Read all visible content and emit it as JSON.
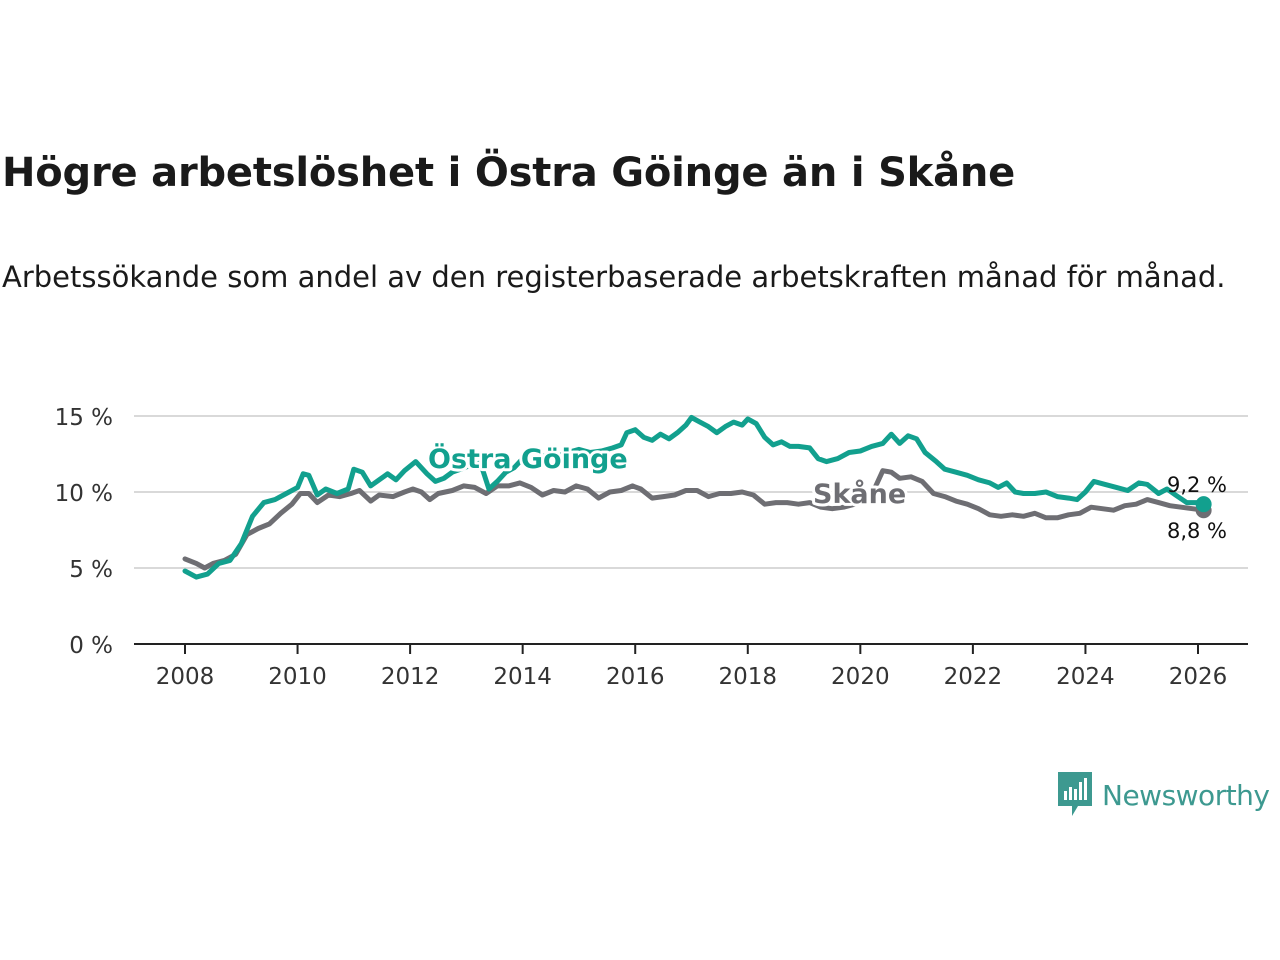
{
  "title": "Högre arbetslöshet i Östra Göinge än i Skåne",
  "subtitle": "Arbetssökande som andel av den registerbaserade arbetskraften månad för månad.",
  "brand": {
    "name": "Newsworthy",
    "color": "#3d9990",
    "icon": "bar-chart-speech-bubble-icon"
  },
  "chart_data": {
    "type": "line",
    "yaxis": {
      "min": 0,
      "max": 15,
      "ticks": [
        0,
        5,
        10,
        15
      ],
      "tick_labels": [
        "0 %",
        "5 %",
        "10 %",
        "15 %"
      ],
      "grid": true
    },
    "xaxis": {
      "min": 2007.6,
      "max": 2026.8,
      "ticks": [
        2008,
        2010,
        2012,
        2014,
        2016,
        2018,
        2020,
        2022,
        2024,
        2026
      ],
      "tick_labels": [
        "2008",
        "2010",
        "2012",
        "2014",
        "2016",
        "2018",
        "2020",
        "2022",
        "2024",
        "2026"
      ]
    },
    "series": [
      {
        "name": "Östra Göinge",
        "label": "Östra Göinge",
        "color": "#12a08e",
        "end_label": "9,2 %",
        "points": [
          [
            2008.0,
            4.8
          ],
          [
            2008.2,
            4.4
          ],
          [
            2008.4,
            4.6
          ],
          [
            2008.6,
            5.3
          ],
          [
            2008.8,
            5.5
          ],
          [
            2009.0,
            6.6
          ],
          [
            2009.2,
            8.4
          ],
          [
            2009.4,
            9.3
          ],
          [
            2009.6,
            9.5
          ],
          [
            2009.8,
            9.9
          ],
          [
            2010.0,
            10.3
          ],
          [
            2010.1,
            11.2
          ],
          [
            2010.2,
            11.1
          ],
          [
            2010.35,
            9.8
          ],
          [
            2010.5,
            10.2
          ],
          [
            2010.7,
            9.9
          ],
          [
            2010.9,
            10.2
          ],
          [
            2011.0,
            11.5
          ],
          [
            2011.15,
            11.3
          ],
          [
            2011.3,
            10.4
          ],
          [
            2011.45,
            10.8
          ],
          [
            2011.6,
            11.2
          ],
          [
            2011.75,
            10.8
          ],
          [
            2011.9,
            11.4
          ],
          [
            2012.1,
            12.0
          ],
          [
            2012.3,
            11.2
          ],
          [
            2012.45,
            10.7
          ],
          [
            2012.6,
            10.9
          ],
          [
            2012.75,
            11.3
          ],
          [
            2012.9,
            11.5
          ],
          [
            2013.1,
            11.8
          ],
          [
            2013.25,
            11.9
          ],
          [
            2013.4,
            10.2
          ],
          [
            2013.55,
            10.7
          ],
          [
            2013.7,
            11.3
          ],
          [
            2013.85,
            11.6
          ],
          [
            2014.0,
            12.2
          ],
          [
            2014.2,
            12.2
          ],
          [
            2014.4,
            12.4
          ],
          [
            2014.6,
            12.3
          ],
          [
            2014.8,
            12.6
          ],
          [
            2015.0,
            12.8
          ],
          [
            2015.2,
            12.6
          ],
          [
            2015.4,
            12.7
          ],
          [
            2015.6,
            12.9
          ],
          [
            2015.75,
            13.1
          ],
          [
            2015.85,
            13.9
          ],
          [
            2016.0,
            14.1
          ],
          [
            2016.15,
            13.6
          ],
          [
            2016.3,
            13.4
          ],
          [
            2016.45,
            13.8
          ],
          [
            2016.6,
            13.5
          ],
          [
            2016.75,
            13.9
          ],
          [
            2016.9,
            14.4
          ],
          [
            2017.0,
            14.9
          ],
          [
            2017.15,
            14.6
          ],
          [
            2017.3,
            14.3
          ],
          [
            2017.45,
            13.9
          ],
          [
            2017.6,
            14.3
          ],
          [
            2017.75,
            14.6
          ],
          [
            2017.9,
            14.4
          ],
          [
            2018.0,
            14.8
          ],
          [
            2018.15,
            14.5
          ],
          [
            2018.3,
            13.6
          ],
          [
            2018.45,
            13.1
          ],
          [
            2018.6,
            13.3
          ],
          [
            2018.75,
            13.0
          ],
          [
            2018.9,
            13.0
          ],
          [
            2019.1,
            12.9
          ],
          [
            2019.25,
            12.2
          ],
          [
            2019.4,
            12.0
          ],
          [
            2019.6,
            12.2
          ],
          [
            2019.8,
            12.6
          ],
          [
            2020.0,
            12.7
          ],
          [
            2020.2,
            13.0
          ],
          [
            2020.4,
            13.2
          ],
          [
            2020.55,
            13.8
          ],
          [
            2020.7,
            13.2
          ],
          [
            2020.85,
            13.7
          ],
          [
            2021.0,
            13.5
          ],
          [
            2021.15,
            12.6
          ],
          [
            2021.35,
            12.0
          ],
          [
            2021.5,
            11.5
          ],
          [
            2021.7,
            11.3
          ],
          [
            2021.9,
            11.1
          ],
          [
            2022.1,
            10.8
          ],
          [
            2022.3,
            10.6
          ],
          [
            2022.45,
            10.3
          ],
          [
            2022.6,
            10.6
          ],
          [
            2022.75,
            10.0
          ],
          [
            2022.9,
            9.9
          ],
          [
            2023.1,
            9.9
          ],
          [
            2023.3,
            10.0
          ],
          [
            2023.5,
            9.7
          ],
          [
            2023.7,
            9.6
          ],
          [
            2023.85,
            9.5
          ],
          [
            2024.0,
            10.0
          ],
          [
            2024.15,
            10.7
          ],
          [
            2024.35,
            10.5
          ],
          [
            2024.55,
            10.3
          ],
          [
            2024.75,
            10.1
          ],
          [
            2024.95,
            10.6
          ],
          [
            2025.1,
            10.5
          ],
          [
            2025.3,
            9.9
          ],
          [
            2025.45,
            10.2
          ],
          [
            2025.6,
            9.8
          ],
          [
            2025.8,
            9.3
          ],
          [
            2026.0,
            9.3
          ],
          [
            2026.1,
            9.2
          ]
        ]
      },
      {
        "name": "Skåne",
        "label": "Skåne",
        "color": "#6e6e73",
        "end_label": "8,8 %",
        "points": [
          [
            2008.0,
            5.6
          ],
          [
            2008.2,
            5.3
          ],
          [
            2008.35,
            5.0
          ],
          [
            2008.5,
            5.3
          ],
          [
            2008.7,
            5.5
          ],
          [
            2008.9,
            5.9
          ],
          [
            2009.1,
            7.2
          ],
          [
            2009.3,
            7.6
          ],
          [
            2009.5,
            7.9
          ],
          [
            2009.7,
            8.6
          ],
          [
            2009.9,
            9.2
          ],
          [
            2010.05,
            9.9
          ],
          [
            2010.2,
            9.9
          ],
          [
            2010.35,
            9.3
          ],
          [
            2010.55,
            9.8
          ],
          [
            2010.75,
            9.7
          ],
          [
            2010.95,
            9.9
          ],
          [
            2011.1,
            10.1
          ],
          [
            2011.3,
            9.4
          ],
          [
            2011.45,
            9.8
          ],
          [
            2011.7,
            9.7
          ],
          [
            2011.9,
            10.0
          ],
          [
            2012.05,
            10.2
          ],
          [
            2012.2,
            10.0
          ],
          [
            2012.35,
            9.5
          ],
          [
            2012.5,
            9.9
          ],
          [
            2012.75,
            10.1
          ],
          [
            2012.95,
            10.4
          ],
          [
            2013.15,
            10.3
          ],
          [
            2013.35,
            9.9
          ],
          [
            2013.55,
            10.4
          ],
          [
            2013.75,
            10.4
          ],
          [
            2013.95,
            10.6
          ],
          [
            2014.15,
            10.3
          ],
          [
            2014.35,
            9.8
          ],
          [
            2014.55,
            10.1
          ],
          [
            2014.75,
            10.0
          ],
          [
            2014.95,
            10.4
          ],
          [
            2015.15,
            10.2
          ],
          [
            2015.35,
            9.6
          ],
          [
            2015.55,
            10.0
          ],
          [
            2015.75,
            10.1
          ],
          [
            2015.95,
            10.4
          ],
          [
            2016.1,
            10.2
          ],
          [
            2016.3,
            9.6
          ],
          [
            2016.5,
            9.7
          ],
          [
            2016.7,
            9.8
          ],
          [
            2016.9,
            10.1
          ],
          [
            2017.1,
            10.1
          ],
          [
            2017.3,
            9.7
          ],
          [
            2017.5,
            9.9
          ],
          [
            2017.7,
            9.9
          ],
          [
            2017.9,
            10.0
          ],
          [
            2018.1,
            9.8
          ],
          [
            2018.3,
            9.2
          ],
          [
            2018.5,
            9.3
          ],
          [
            2018.7,
            9.3
          ],
          [
            2018.9,
            9.2
          ],
          [
            2019.1,
            9.3
          ],
          [
            2019.3,
            9.0
          ],
          [
            2019.5,
            8.9
          ],
          [
            2019.7,
            9.0
          ],
          [
            2019.9,
            9.2
          ],
          [
            2020.1,
            9.8
          ],
          [
            2020.25,
            10.2
          ],
          [
            2020.4,
            11.4
          ],
          [
            2020.55,
            11.3
          ],
          [
            2020.7,
            10.9
          ],
          [
            2020.9,
            11.0
          ],
          [
            2021.1,
            10.7
          ],
          [
            2021.3,
            9.9
          ],
          [
            2021.5,
            9.7
          ],
          [
            2021.7,
            9.4
          ],
          [
            2021.9,
            9.2
          ],
          [
            2022.1,
            8.9
          ],
          [
            2022.3,
            8.5
          ],
          [
            2022.5,
            8.4
          ],
          [
            2022.7,
            8.5
          ],
          [
            2022.9,
            8.4
          ],
          [
            2023.1,
            8.6
          ],
          [
            2023.3,
            8.3
          ],
          [
            2023.5,
            8.3
          ],
          [
            2023.7,
            8.5
          ],
          [
            2023.9,
            8.6
          ],
          [
            2024.1,
            9.0
          ],
          [
            2024.3,
            8.9
          ],
          [
            2024.5,
            8.8
          ],
          [
            2024.7,
            9.1
          ],
          [
            2024.9,
            9.2
          ],
          [
            2025.1,
            9.5
          ],
          [
            2025.3,
            9.3
          ],
          [
            2025.5,
            9.1
          ],
          [
            2025.7,
            9.0
          ],
          [
            2025.9,
            8.9
          ],
          [
            2026.1,
            8.8
          ]
        ]
      }
    ]
  }
}
